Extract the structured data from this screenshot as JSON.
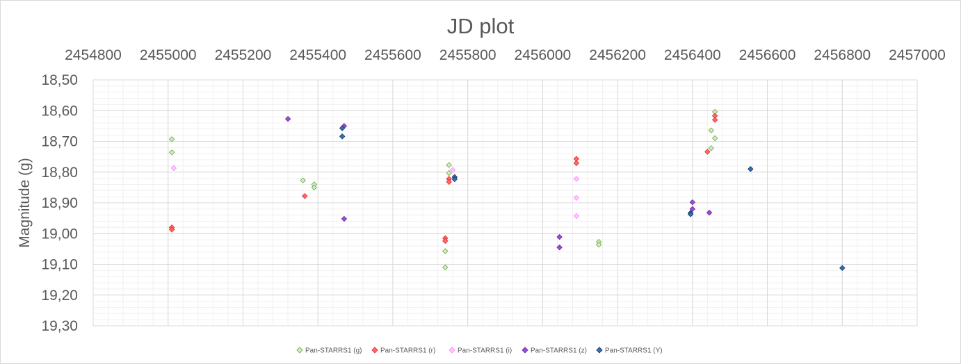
{
  "chart_data": {
    "type": "scatter",
    "title": "JD plot",
    "xlabel": "",
    "ylabel": "Magnitude (g)",
    "xlim": [
      2454800,
      2457000
    ],
    "ylim": [
      18.5,
      19.3
    ],
    "y_inverted": true,
    "x_axis_position": "top",
    "x_ticks": [
      "2454800",
      "2455000",
      "2455200",
      "2455400",
      "2455600",
      "2455800",
      "2456000",
      "2456200",
      "2456400",
      "2456600",
      "2456800",
      "2457000"
    ],
    "y_ticks": [
      "18,50",
      "18,60",
      "18,70",
      "18,80",
      "18,90",
      "19,00",
      "19,10",
      "19,20",
      "19,30"
    ],
    "grid": true,
    "legend_position": "bottom",
    "series": [
      {
        "name": "Pan-STARRS1 (g)",
        "color": "#70ad47",
        "fill": "#d7ecc8",
        "points": [
          [
            2455010,
            18.693
          ],
          [
            2455010,
            18.736
          ],
          [
            2455360,
            18.827
          ],
          [
            2455390,
            18.84
          ],
          [
            2455390,
            18.85
          ],
          [
            2455750,
            18.777
          ],
          [
            2455750,
            18.803
          ],
          [
            2455740,
            19.057
          ],
          [
            2455740,
            19.11
          ],
          [
            2456150,
            19.027
          ],
          [
            2456150,
            19.036
          ],
          [
            2456460,
            18.604
          ],
          [
            2456450,
            18.664
          ],
          [
            2456460,
            18.69
          ],
          [
            2456450,
            18.722
          ]
        ]
      },
      {
        "name": "Pan-STARRS1 (r)",
        "color": "#e8312f",
        "fill": "#ff6b6b",
        "points": [
          [
            2455010,
            18.98
          ],
          [
            2455010,
            18.987
          ],
          [
            2455365,
            18.878
          ],
          [
            2455750,
            18.822
          ],
          [
            2455750,
            18.832
          ],
          [
            2455740,
            19.015
          ],
          [
            2455740,
            19.024
          ],
          [
            2456090,
            18.757
          ],
          [
            2456090,
            18.771
          ],
          [
            2456460,
            18.617
          ],
          [
            2456460,
            18.63
          ],
          [
            2456440,
            18.734
          ]
        ]
      },
      {
        "name": "Pan-STARRS1 (i)",
        "color": "#ff8cff",
        "fill": "#ffc8ff",
        "points": [
          [
            2455015,
            18.787
          ],
          [
            2455760,
            18.793
          ],
          [
            2456090,
            18.822
          ],
          [
            2456090,
            18.884
          ],
          [
            2456090,
            18.943
          ]
        ]
      },
      {
        "name": "Pan-STARRS1 (z)",
        "color": "#7030a0",
        "fill": "#9b4be0",
        "points": [
          [
            2455320,
            18.627
          ],
          [
            2455470,
            18.65
          ],
          [
            2455470,
            18.952
          ],
          [
            2456045,
            19.011
          ],
          [
            2456045,
            19.045
          ],
          [
            2456400,
            18.898
          ],
          [
            2456400,
            18.92
          ],
          [
            2456445,
            18.932
          ]
        ]
      },
      {
        "name": "Pan-STARRS1 (Y)",
        "color": "#1f3864",
        "fill": "#2e75b6",
        "points": [
          [
            2455465,
            18.657
          ],
          [
            2455465,
            18.684
          ],
          [
            2455765,
            18.816
          ],
          [
            2455765,
            18.823
          ],
          [
            2456395,
            18.933
          ],
          [
            2456395,
            18.937
          ],
          [
            2456555,
            18.79
          ],
          [
            2456800,
            19.112
          ]
        ]
      }
    ]
  }
}
